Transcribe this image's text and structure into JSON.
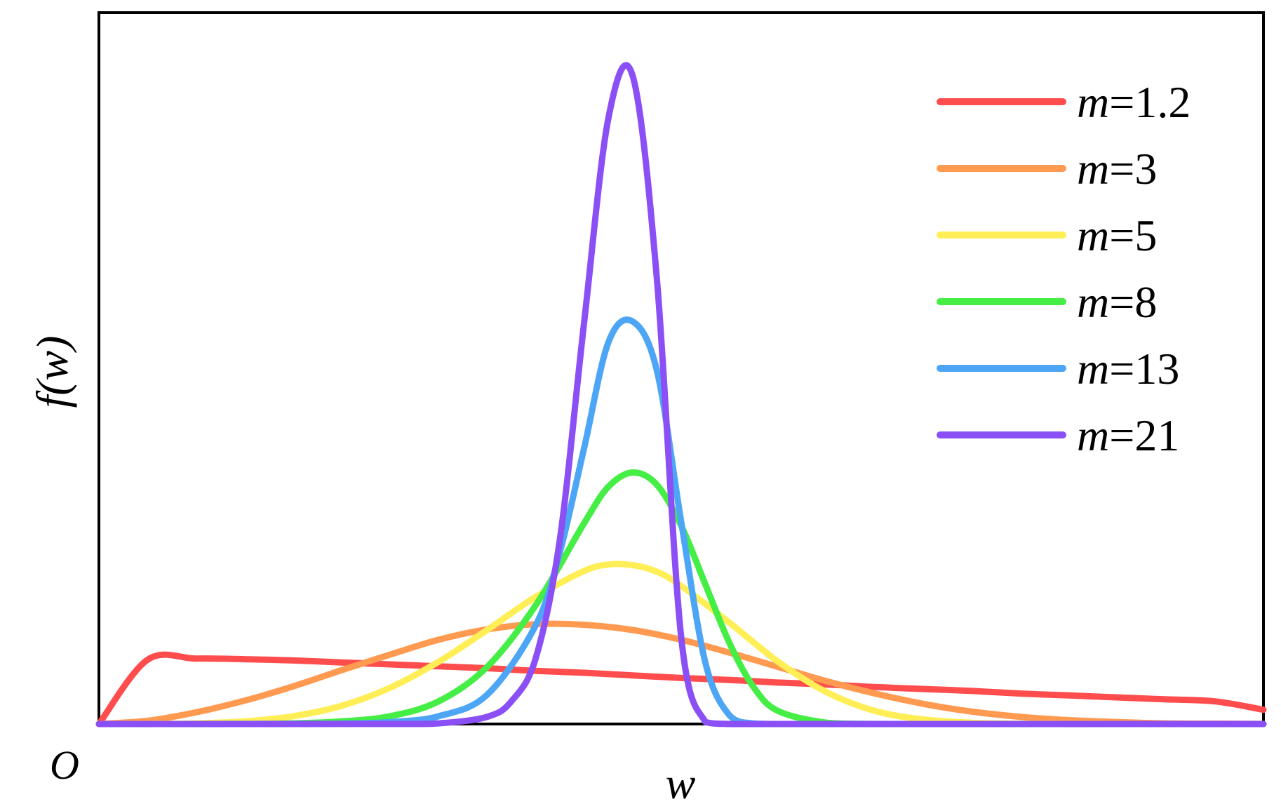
{
  "chart_data": {
    "type": "line",
    "title": "",
    "xlabel": "w",
    "ylabel": "f(w)",
    "origin_label": "O",
    "grid": false,
    "ticks": false,
    "legend_position": "top-right",
    "xlim": [
      0,
      2.4
    ],
    "ylim": [
      0,
      1.0
    ],
    "legend_var": "m",
    "series": [
      {
        "name": "m=1.2",
        "m_value": "1.2",
        "m": 1.2,
        "color": "#ff4c4c",
        "x": [
          0,
          0.1,
          0.2,
          0.3,
          0.4,
          0.5,
          0.6,
          0.7,
          0.8,
          0.9,
          1.0,
          1.1,
          1.2,
          1.3,
          1.4,
          1.5,
          1.6,
          1.7,
          1.8,
          1.9,
          2.0,
          2.1,
          2.2,
          2.3,
          2.4
        ],
        "y": [
          0.0,
          0.099,
          0.101,
          0.1,
          0.098,
          0.095,
          0.092,
          0.089,
          0.086,
          0.082,
          0.079,
          0.075,
          0.071,
          0.068,
          0.064,
          0.061,
          0.057,
          0.054,
          0.051,
          0.047,
          0.044,
          0.041,
          0.038,
          0.035,
          0.022
        ]
      },
      {
        "name": "m=3",
        "m_value": "3",
        "m": 3,
        "color": "#ff9a50",
        "x": [
          0,
          0.1,
          0.2,
          0.3,
          0.4,
          0.5,
          0.6,
          0.7,
          0.8,
          0.9,
          1.0,
          1.1,
          1.2,
          1.3,
          1.4,
          1.5,
          1.6,
          1.7,
          1.8,
          1.9,
          2.0,
          2.1,
          2.2,
          2.3,
          2.4
        ],
        "y": [
          0.0,
          0.005,
          0.018,
          0.036,
          0.058,
          0.083,
          0.107,
          0.13,
          0.146,
          0.154,
          0.153,
          0.145,
          0.13,
          0.11,
          0.088,
          0.066,
          0.047,
          0.031,
          0.019,
          0.011,
          0.006,
          0.003,
          0.001,
          0.0005,
          0.0002
        ]
      },
      {
        "name": "m=5",
        "m_value": "5",
        "m": 5,
        "color": "#ffee55",
        "x": [
          0,
          0.1,
          0.2,
          0.3,
          0.4,
          0.5,
          0.6,
          0.7,
          0.8,
          0.9,
          1.0,
          1.05,
          1.1,
          1.15,
          1.2,
          1.3,
          1.4,
          1.5,
          1.6,
          1.7,
          1.8,
          1.9,
          2.0,
          2.2,
          2.4
        ],
        "y": [
          0.0,
          0.0001,
          0.001,
          0.004,
          0.012,
          0.028,
          0.056,
          0.096,
          0.145,
          0.196,
          0.236,
          0.246,
          0.245,
          0.235,
          0.213,
          0.156,
          0.096,
          0.049,
          0.02,
          0.007,
          0.002,
          0.0005,
          0.0001,
          0.0,
          0.0
        ]
      },
      {
        "name": "m=8",
        "m_value": "8",
        "m": 8,
        "color": "#44ee44",
        "x": [
          0,
          0.3,
          0.4,
          0.5,
          0.6,
          0.7,
          0.8,
          0.9,
          1.0,
          1.05,
          1.1,
          1.15,
          1.2,
          1.25,
          1.3,
          1.35,
          1.4,
          1.5,
          1.6,
          1.7,
          1.8,
          2.0,
          2.4
        ],
        "y": [
          0.0,
          0.0001,
          0.001,
          0.004,
          0.012,
          0.035,
          0.088,
          0.183,
          0.31,
          0.366,
          0.388,
          0.369,
          0.306,
          0.215,
          0.124,
          0.056,
          0.02,
          0.002,
          0.0001,
          0.0,
          0.0,
          0.0,
          0.0
        ]
      },
      {
        "name": "m=13",
        "m_value": "13",
        "m": 13,
        "color": "#4da6f5",
        "x": [
          0,
          0.4,
          0.5,
          0.6,
          0.7,
          0.8,
          0.9,
          0.95,
          1.0,
          1.05,
          1.1,
          1.15,
          1.2,
          1.25,
          1.3,
          1.35,
          1.4,
          1.5,
          1.6,
          2.4
        ],
        "y": [
          0.0,
          0.0001,
          0.0006,
          0.003,
          0.012,
          0.045,
          0.152,
          0.265,
          0.426,
          0.589,
          0.621,
          0.545,
          0.312,
          0.094,
          0.013,
          0.0006,
          0.0,
          0.0,
          0.0,
          0.0
        ]
      },
      {
        "name": "m=21",
        "m_value": "21",
        "m": 21,
        "color": "#8a4ff5",
        "x": [
          0,
          0.6,
          0.7,
          0.8,
          0.85,
          0.9,
          0.95,
          1.0,
          1.05,
          1.1,
          1.15,
          1.2,
          1.25,
          1.3,
          1.4,
          2.4
        ],
        "y": [
          0.0,
          0.0001,
          0.001,
          0.011,
          0.035,
          0.101,
          0.285,
          0.62,
          0.935,
          1.0,
          0.686,
          0.134,
          0.003,
          0.0,
          0.0,
          0.0
        ]
      }
    ]
  }
}
